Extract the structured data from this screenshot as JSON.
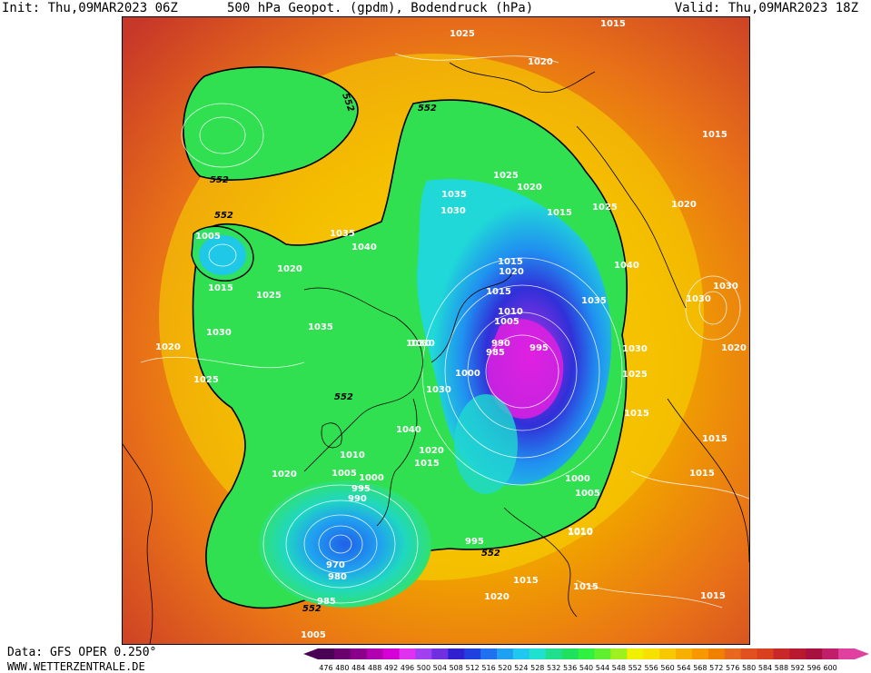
{
  "header": {
    "init": "Init: Thu,09MAR2023 06Z",
    "title": "500 hPa Geopot. (gpdm), Bodendruck (hPa)",
    "valid": "Valid: Thu,09MAR2023 18Z"
  },
  "footer": {
    "source": "Data: GFS OPER 0.250°",
    "website": "WWW.WETTERZENTRALE.DE"
  },
  "colorbar": {
    "ticks": [
      "476",
      "480",
      "484",
      "488",
      "492",
      "496",
      "500",
      "504",
      "508",
      "512",
      "516",
      "520",
      "524",
      "528",
      "532",
      "536",
      "540",
      "544",
      "548",
      "552",
      "556",
      "560",
      "564",
      "568",
      "572",
      "576",
      "580",
      "584",
      "588",
      "592",
      "596",
      "600"
    ],
    "colors": [
      "#4a0055",
      "#6a006e",
      "#8b008b",
      "#b000b0",
      "#d400d4",
      "#e030f0",
      "#a040f0",
      "#7030e0",
      "#3020d0",
      "#2040e0",
      "#2070f0",
      "#20a0f0",
      "#20c8f0",
      "#20e0d0",
      "#20e090",
      "#20e060",
      "#30f040",
      "#60f030",
      "#a0f020",
      "#f0f000",
      "#f8e000",
      "#f8c800",
      "#f8b000",
      "#f89800",
      "#f08000",
      "#e86820",
      "#e05020",
      "#d84020",
      "#c82828",
      "#b81830",
      "#a81040",
      "#c0206a",
      "#e040a0"
    ]
  },
  "map": {
    "contour_552_labels": [
      "552",
      "552",
      "552",
      "552",
      "552",
      "552",
      "552"
    ],
    "pressure_labels": [
      "1025",
      "1015",
      "1020",
      "1015",
      "1025",
      "1020",
      "1015",
      "1025",
      "1035",
      "1030",
      "1015",
      "1020",
      "1040",
      "1015",
      "1010",
      "1005",
      "990",
      "985",
      "995",
      "1000",
      "1035",
      "1030",
      "1035",
      "1040",
      "1020",
      "1015",
      "1025",
      "1005",
      "1030",
      "1020",
      "1025",
      "1030",
      "1025",
      "1015",
      "1020",
      "1015",
      "1015",
      "1015",
      "1010",
      "1030",
      "1030",
      "1040",
      "1030",
      "1035",
      "1020",
      "1010",
      "1005",
      "1000",
      "995",
      "990",
      "1020",
      "1015",
      "1000",
      "1005",
      "1010",
      "970",
      "980",
      "985",
      "995",
      "1005",
      "1020",
      "1015",
      "1015",
      "1030",
      "1020"
    ]
  }
}
